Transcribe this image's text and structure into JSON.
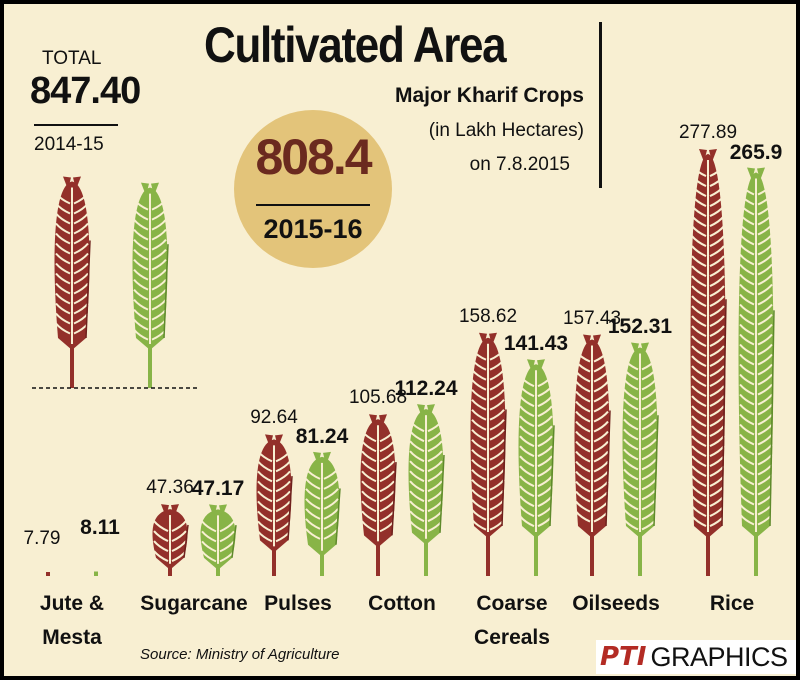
{
  "header": {
    "title": "Cultivated Area",
    "subtitle": "Major Kharif Crops",
    "unit": "(in Lakh Hectares)",
    "as_of": "on 7.8.2015"
  },
  "totals": {
    "total_label": "TOTAL",
    "previous_total": "847.40",
    "previous_year": "2014-15",
    "current_total": "808.4",
    "current_year": "2015-16"
  },
  "footer": {
    "source": "Source: Ministry of Agriculture",
    "logo_mark": "PTI",
    "logo_text": "GRAPHICS"
  },
  "colors": {
    "background": "#f8efd2",
    "series_2014_15": "#93302a",
    "series_2015_16": "#88b447",
    "circle": "#e3c47a"
  },
  "chart_data": {
    "type": "bar",
    "title": "Cultivated Area",
    "subtitle": "Major Kharif Crops",
    "ylabel": "",
    "xlabel": "",
    "categories": [
      [
        "Jute &",
        "Mesta"
      ],
      [
        "Sugarcane"
      ],
      [
        "Pulses"
      ],
      [
        "Cotton"
      ],
      [
        "Coarse",
        "Cereals"
      ],
      [
        "Oilseeds"
      ],
      [
        "Rice"
      ]
    ],
    "series": [
      {
        "key": "2014-15",
        "color": "#93302a",
        "values": [
          7.79,
          47.36,
          92.64,
          105.68,
          158.62,
          157.43,
          277.89
        ],
        "labels": [
          "7.79",
          "47.36",
          "92.64",
          "105.68",
          "158.62",
          "157.43",
          "277.89"
        ]
      },
      {
        "key": "2015-16",
        "color": "#88b447",
        "values": [
          8.11,
          47.17,
          81.24,
          112.24,
          141.43,
          152.31,
          265.9
        ],
        "labels": [
          "8.11",
          "47.17",
          "81.24",
          "112.24",
          "141.43",
          "152.31",
          "265.9"
        ]
      }
    ],
    "ylim": [
      0,
      290
    ],
    "grid": false,
    "legend": "totals-top-left"
  }
}
